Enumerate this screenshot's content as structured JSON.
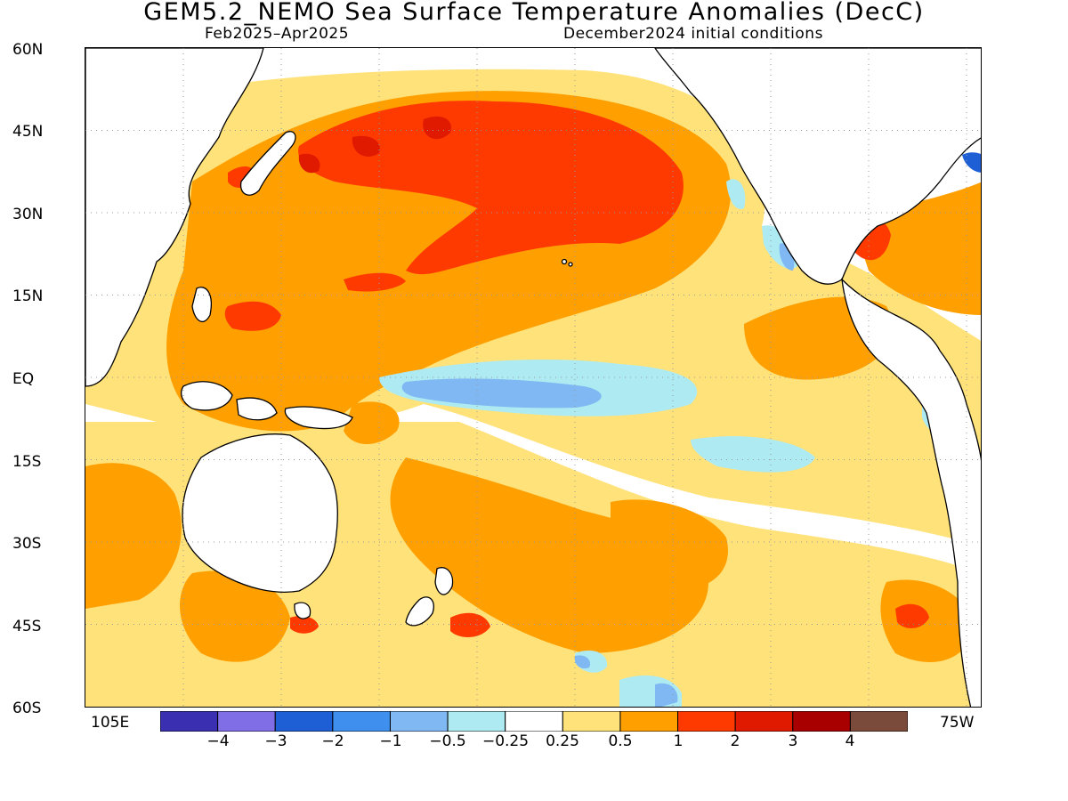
{
  "header": {
    "title": "GEM5.2_NEMO Sea Surface Temperature Anomalies (DecC)",
    "period": "Feb2025–Apr2025",
    "init": "December2024 initial conditions"
  },
  "axes": {
    "lat_labels": [
      "60N",
      "45N",
      "30N",
      "15N",
      "EQ",
      "15S",
      "30S",
      "45S",
      "60S"
    ],
    "lon_left": "105E",
    "lon_right": "75W"
  },
  "colorbar": {
    "colors": [
      "#3a2fb0",
      "#7f6ee6",
      "#1f5fd6",
      "#3f8fef",
      "#7fb8f2",
      "#aeeaf2",
      "#ffffff",
      "#ffe27a",
      "#ff9f00",
      "#ff3a00",
      "#e01a00",
      "#a80000",
      "#7a4a3a"
    ],
    "labels": [
      "−4",
      "−3",
      "−2",
      "−1",
      "−0.5",
      "−0.25",
      "0.25",
      "0.5",
      "1",
      "2",
      "3",
      "4"
    ]
  },
  "map": {
    "land_color": "#ffffff",
    "grid": "dotted"
  }
}
